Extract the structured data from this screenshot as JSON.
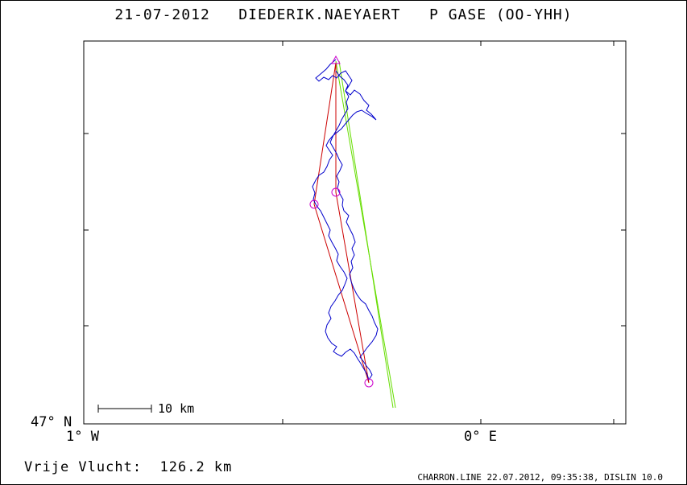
{
  "title": "21-07-2012   DIEDERIK.NAEYAERT   P GASE (OO-YHH)",
  "map": {
    "lat_label": "47° N",
    "lon_label_west": "1° W",
    "lon_label_east": "0° E",
    "scale_label": "10 km",
    "track_color": "#0000cc",
    "route_color": "#cc0000",
    "alt_route_color": "#66dd00",
    "turnpoint_color": "#cc00cc",
    "turnpoint_icon": "circle-icon",
    "start_icon": "triangle-icon"
  },
  "footer": {
    "distance_label": "Vrije Vlucht:  126.2 km",
    "software_info": "CHARRON.LINE 22.07.2012, 09:35:38, DISLIN 10.0"
  }
}
